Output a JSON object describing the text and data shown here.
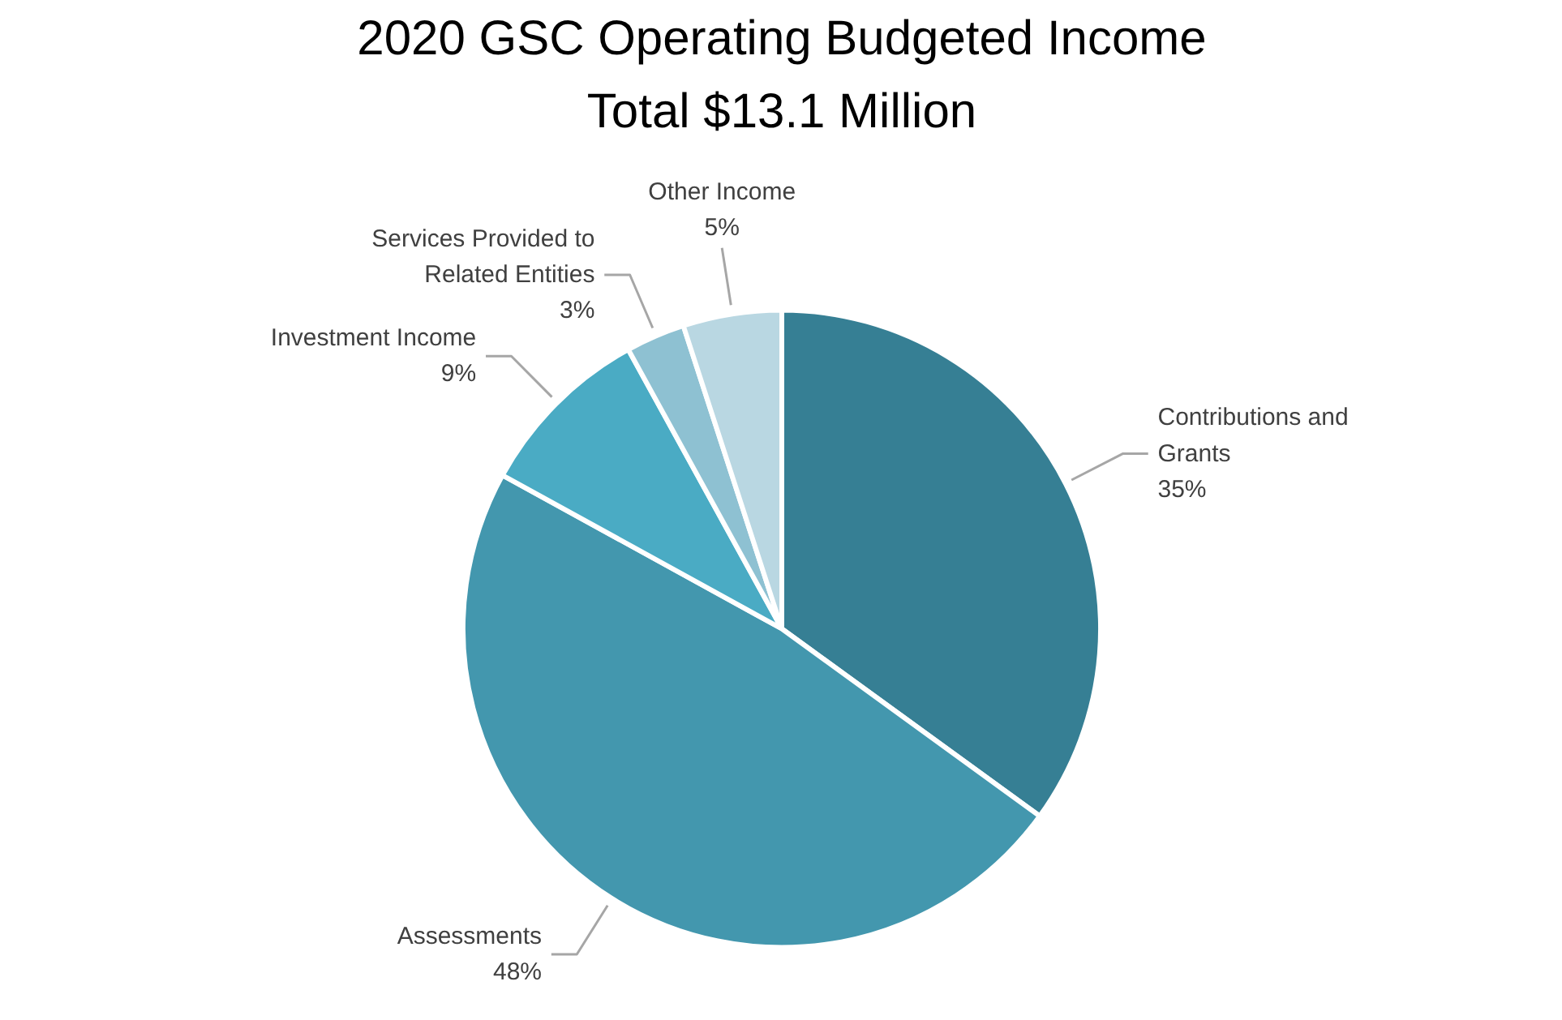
{
  "chart_data": {
    "type": "pie",
    "title": "2020 GSC Operating Budgeted Income",
    "subtitle": "Total $13.1 Million",
    "categories": [
      "Contributions and Grants",
      "Assessments",
      "Investment Income",
      "Services Provided to Related Entities",
      "Other Income"
    ],
    "values": [
      35,
      48,
      9,
      3,
      5
    ],
    "value_labels": [
      "35%",
      "48%",
      "9%",
      "3%",
      "5%"
    ],
    "colors": [
      "#367f94",
      "#4397ae",
      "#4aabc4",
      "#8ec1d2",
      "#b9d7e2"
    ]
  }
}
